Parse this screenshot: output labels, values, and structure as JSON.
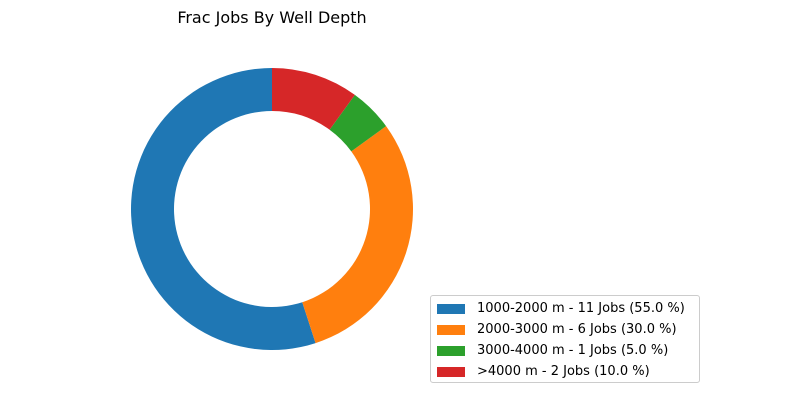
{
  "chart_data": {
    "type": "pie",
    "title": "Frac Jobs By Well Depth",
    "donut": true,
    "categories": [
      "1000-2000 m",
      "2000-3000 m",
      "3000-4000 m",
      ">4000 m"
    ],
    "values": [
      11,
      6,
      1,
      2
    ],
    "percentages": [
      55.0,
      30.0,
      5.0,
      10.0
    ],
    "colors": [
      "#1f77b4",
      "#ff7f0e",
      "#2ca02c",
      "#d62728"
    ],
    "legend_labels": [
      "1000-2000 m - 11 Jobs (55.0 %)",
      "2000-3000 m - 6 Jobs (30.0 %)",
      "3000-4000 m - 1 Jobs (5.0 %)",
      ">4000 m - 2 Jobs (10.0 %)"
    ],
    "legend_position": "bottom-right",
    "start": "top",
    "direction": "counterclockwise"
  }
}
